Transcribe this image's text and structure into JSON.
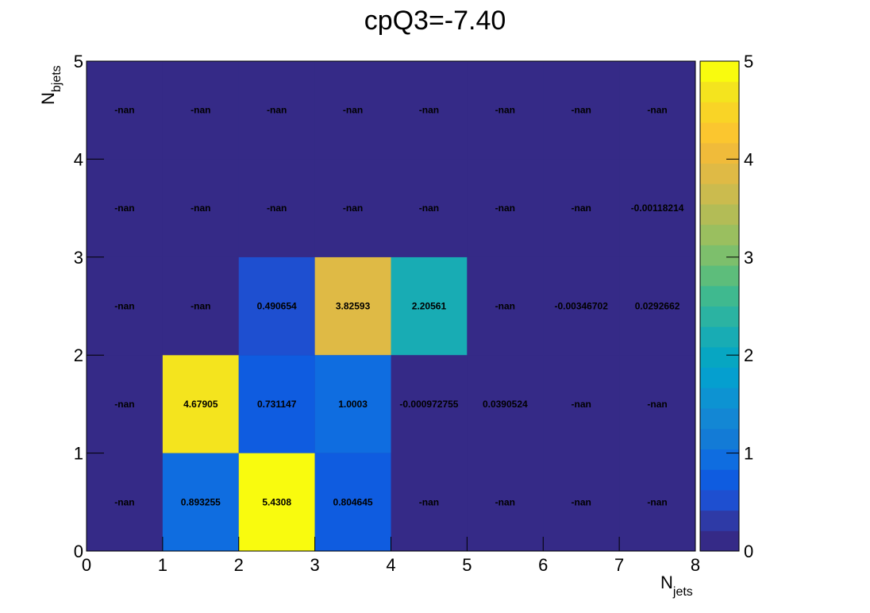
{
  "chart_data": {
    "type": "heatmap",
    "title": "cpQ3=-7.40",
    "xlabel": {
      "main": "N",
      "sub": "jets"
    },
    "ylabel": {
      "main": "N",
      "sub": "bjets"
    },
    "xlim": [
      0,
      8
    ],
    "ylim": [
      0,
      5
    ],
    "zlim": [
      0,
      5
    ],
    "x_ticks": [
      "0",
      "1",
      "2",
      "3",
      "4",
      "5",
      "6",
      "7",
      "8"
    ],
    "y_ticks": [
      "0",
      "1",
      "2",
      "3",
      "4",
      "5"
    ],
    "z_ticks": [
      "0",
      "1",
      "2",
      "3",
      "4",
      "5"
    ],
    "x_bins": 8,
    "y_bins": 5,
    "empty_color": "#352a87",
    "cells": [
      [
        "-nan",
        "0.893255",
        "5.4308",
        "0.804645",
        "-nan",
        "-nan",
        "-nan",
        "-nan"
      ],
      [
        "-nan",
        "4.67905",
        "0.731147",
        "1.0003",
        "-0.000972755",
        "0.0390524",
        "-nan",
        "-nan"
      ],
      [
        "-nan",
        "-nan",
        "0.490654",
        "3.82593",
        "2.20561",
        "-nan",
        "-0.00346702",
        "0.0292662"
      ],
      [
        "-nan",
        "-nan",
        "-nan",
        "-nan",
        "-nan",
        "-nan",
        "-nan",
        "-0.00118214"
      ],
      [
        "-nan",
        "-nan",
        "-nan",
        "-nan",
        "-nan",
        "-nan",
        "-nan",
        "-nan"
      ]
    ],
    "palette": [
      "#352a87",
      "#2e3aa6",
      "#1e4fd0",
      "#0f5ce0",
      "#0f6de0",
      "#137bd6",
      "#1387d4",
      "#0d93d2",
      "#059fcf",
      "#07a6c2",
      "#18acb4",
      "#2bb3a2",
      "#3fb98f",
      "#5dbd7b",
      "#7dbf6c",
      "#9abf5f",
      "#b3bc56",
      "#cbbb4e",
      "#dfba45",
      "#f0bb3a",
      "#fbc62f",
      "#f9d426",
      "#f4e41e",
      "#f9fb0e"
    ]
  }
}
